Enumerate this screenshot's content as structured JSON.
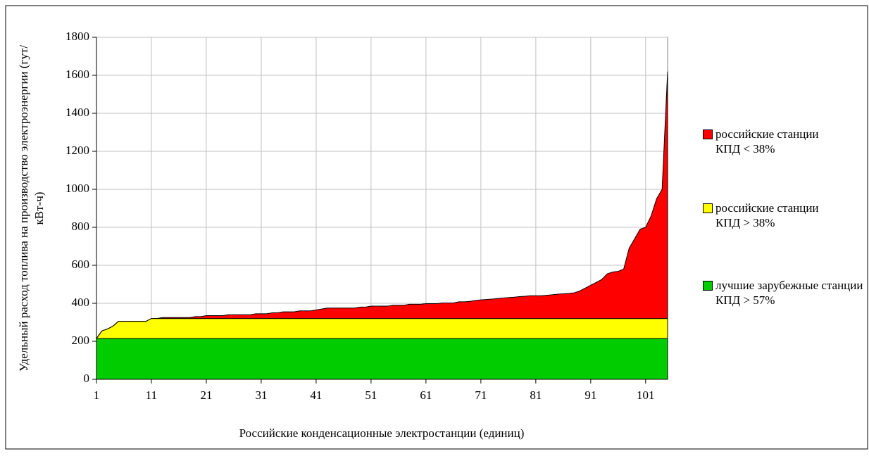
{
  "chart_data": {
    "type": "stacked_area",
    "x_label": "Российские конденсационные электростанции (единиц)",
    "y_label": "Удельный расход топлива на производство электроэнергии (гут/кВт-ч)",
    "x": [
      1,
      2,
      3,
      4,
      5,
      6,
      7,
      8,
      9,
      10,
      11,
      12,
      13,
      14,
      15,
      16,
      17,
      18,
      19,
      20,
      21,
      22,
      23,
      24,
      25,
      26,
      27,
      28,
      29,
      30,
      31,
      32,
      33,
      34,
      35,
      36,
      37,
      38,
      39,
      40,
      41,
      42,
      43,
      44,
      45,
      46,
      47,
      48,
      49,
      50,
      51,
      52,
      53,
      54,
      55,
      56,
      57,
      58,
      59,
      60,
      61,
      62,
      63,
      64,
      65,
      66,
      67,
      68,
      69,
      70,
      71,
      72,
      73,
      74,
      75,
      76,
      77,
      78,
      79,
      80,
      81,
      82,
      83,
      84,
      85,
      86,
      87,
      88,
      89,
      90,
      91,
      92,
      93,
      94,
      95,
      96,
      97,
      98,
      99,
      100,
      101,
      102,
      103,
      104,
      105
    ],
    "xlim": [
      1,
      105
    ],
    "xticks": [
      1,
      11,
      21,
      31,
      41,
      51,
      61,
      71,
      81,
      91,
      101
    ],
    "ylim": [
      0,
      1800
    ],
    "yticks": [
      0,
      200,
      400,
      600,
      800,
      1000,
      1200,
      1400,
      1600,
      1800
    ],
    "grid": true,
    "series": [
      {
        "name": "лучшие зарубежные станции КПД > 57%",
        "color": "#00cc00",
        "values": [
          215,
          215,
          215,
          215,
          215,
          215,
          215,
          215,
          215,
          215,
          215,
          215,
          215,
          215,
          215,
          215,
          215,
          215,
          215,
          215,
          215,
          215,
          215,
          215,
          215,
          215,
          215,
          215,
          215,
          215,
          215,
          215,
          215,
          215,
          215,
          215,
          215,
          215,
          215,
          215,
          215,
          215,
          215,
          215,
          215,
          215,
          215,
          215,
          215,
          215,
          215,
          215,
          215,
          215,
          215,
          215,
          215,
          215,
          215,
          215,
          215,
          215,
          215,
          215,
          215,
          215,
          215,
          215,
          215,
          215,
          215,
          215,
          215,
          215,
          215,
          215,
          215,
          215,
          215,
          215,
          215,
          215,
          215,
          215,
          215,
          215,
          215,
          215,
          215,
          215,
          215,
          215,
          215,
          215,
          215,
          215,
          215,
          215,
          215,
          215,
          215,
          215,
          215,
          215,
          215
        ]
      },
      {
        "name": "российские станции КПД > 38%",
        "color": "#ffff00",
        "values": [
          0,
          40,
          50,
          65,
          90,
          90,
          90,
          90,
          90,
          90,
          105,
          105,
          105,
          105,
          105,
          105,
          105,
          105,
          105,
          105,
          105,
          105,
          105,
          105,
          105,
          105,
          105,
          105,
          105,
          105,
          105,
          105,
          105,
          105,
          105,
          105,
          105,
          105,
          105,
          105,
          105,
          105,
          105,
          105,
          105,
          105,
          105,
          105,
          105,
          105,
          105,
          105,
          105,
          105,
          105,
          105,
          105,
          105,
          105,
          105,
          105,
          105,
          105,
          105,
          105,
          105,
          105,
          105,
          105,
          105,
          105,
          105,
          105,
          105,
          105,
          105,
          105,
          105,
          105,
          105,
          105,
          105,
          105,
          105,
          105,
          105,
          105,
          105,
          105,
          105,
          105,
          105,
          105,
          105,
          105,
          105,
          105,
          105,
          105,
          105,
          105,
          105,
          105,
          105,
          105
        ]
      },
      {
        "name": "российские станции КПД < 38%",
        "color": "#ff0000",
        "values": [
          0,
          0,
          0,
          0,
          0,
          0,
          0,
          0,
          0,
          0,
          0,
          0,
          5,
          5,
          5,
          5,
          5,
          5,
          10,
          10,
          15,
          15,
          15,
          15,
          20,
          20,
          20,
          20,
          20,
          25,
          25,
          25,
          30,
          30,
          35,
          35,
          35,
          40,
          40,
          40,
          45,
          50,
          55,
          55,
          55,
          55,
          55,
          55,
          60,
          60,
          65,
          65,
          65,
          65,
          70,
          70,
          70,
          75,
          75,
          75,
          78,
          78,
          78,
          82,
          82,
          82,
          88,
          88,
          90,
          95,
          98,
          100,
          102,
          105,
          108,
          110,
          112,
          115,
          117,
          120,
          120,
          120,
          122,
          125,
          128,
          130,
          132,
          135,
          145,
          160,
          175,
          190,
          205,
          235,
          245,
          248,
          260,
          370,
          420,
          470,
          480,
          540,
          630,
          680,
          1300
        ]
      }
    ],
    "legend": "right"
  }
}
